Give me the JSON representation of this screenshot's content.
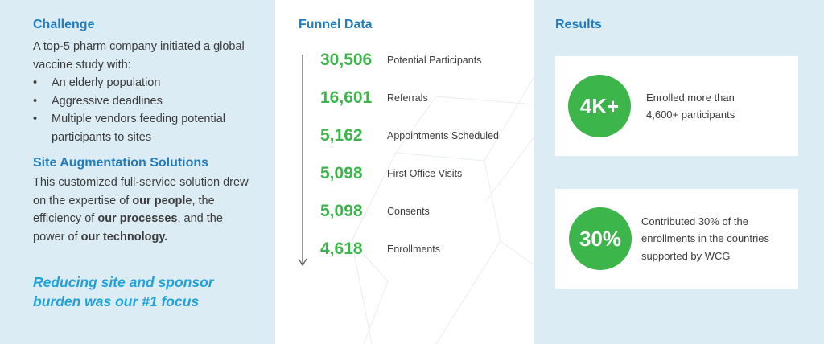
{
  "challenge": {
    "heading": "Challenge",
    "intro": "A top-5 pharm company initiated a global vaccine study with:",
    "bullets": [
      "An elderly population",
      "Aggressive deadlines",
      "Multiple vendors feeding potential participants to sites"
    ]
  },
  "solutions": {
    "heading": "Site Augmentation Solutions",
    "text_1": "This customized full-service solution drew on the expertise of ",
    "bold_1": "our people",
    "text_2": ", the efficiency of ",
    "bold_2": "our processes",
    "text_3": ", and the power of ",
    "bold_3": "our technology."
  },
  "tagline": "Reducing site and sponsor burden was our #1 focus",
  "funnel": {
    "heading": "Funnel Data",
    "rows": [
      {
        "value": "30,506",
        "label": "Potential Participants"
      },
      {
        "value": "16,601",
        "label": "Referrals"
      },
      {
        "value": "5,162",
        "label": "Appointments Scheduled"
      },
      {
        "value": "5,098",
        "label": "First Office Visits"
      },
      {
        "value": "5,098",
        "label": "Consents"
      },
      {
        "value": "4,618",
        "label": "Enrollments"
      }
    ]
  },
  "results": {
    "heading": "Results",
    "cards": [
      {
        "badge": "4K+",
        "text": "Enrolled more than 4,600+ participants"
      },
      {
        "badge": "30%",
        "text": "Contributed 30% of the enrollments in the countries supported by WCG"
      }
    ]
  },
  "colors": {
    "heading_blue": "#1f7cc0",
    "tagline_blue": "#1fa2dc",
    "accent_green": "#3cb54a",
    "panel_light_blue": "#dcecf5"
  }
}
